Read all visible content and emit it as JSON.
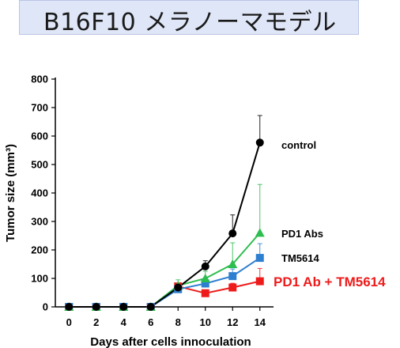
{
  "title": "B16F10 メラノーマモデル",
  "chart_data": {
    "type": "line",
    "xlabel": "Days after cells innoculation",
    "ylabel": "Tumor size (mm³)",
    "x": [
      0,
      2,
      4,
      6,
      8,
      10,
      12,
      14
    ],
    "xlim": [
      -1,
      15
    ],
    "ylim": [
      0,
      800
    ],
    "yticks": [
      0,
      100,
      200,
      300,
      400,
      500,
      600,
      700,
      800
    ],
    "grid": false,
    "series": [
      {
        "name": "control",
        "color": "#000000",
        "marker": "circle",
        "values": [
          0,
          0,
          0,
          0,
          68,
          142,
          258,
          577
        ],
        "error": [
          0,
          0,
          0,
          0,
          15,
          20,
          65,
          95
        ]
      },
      {
        "name": "PD1 Abs",
        "color": "#2ebd4f",
        "marker": "triangle",
        "values": [
          0,
          0,
          0,
          0,
          75,
          100,
          150,
          260
        ],
        "error": [
          0,
          0,
          0,
          0,
          20,
          25,
          75,
          170
        ]
      },
      {
        "name": "TM5614",
        "color": "#2f7fd0",
        "marker": "square",
        "values": [
          0,
          0,
          0,
          0,
          62,
          82,
          108,
          172
        ],
        "error": [
          0,
          0,
          0,
          0,
          20,
          20,
          25,
          50
        ]
      },
      {
        "name": "PD1 Ab + TM5614",
        "color": "#ee1b1b",
        "marker": "square",
        "values": [
          0,
          0,
          0,
          0,
          72,
          48,
          68,
          90
        ],
        "error": [
          0,
          0,
          0,
          0,
          10,
          10,
          15,
          45
        ]
      }
    ]
  }
}
